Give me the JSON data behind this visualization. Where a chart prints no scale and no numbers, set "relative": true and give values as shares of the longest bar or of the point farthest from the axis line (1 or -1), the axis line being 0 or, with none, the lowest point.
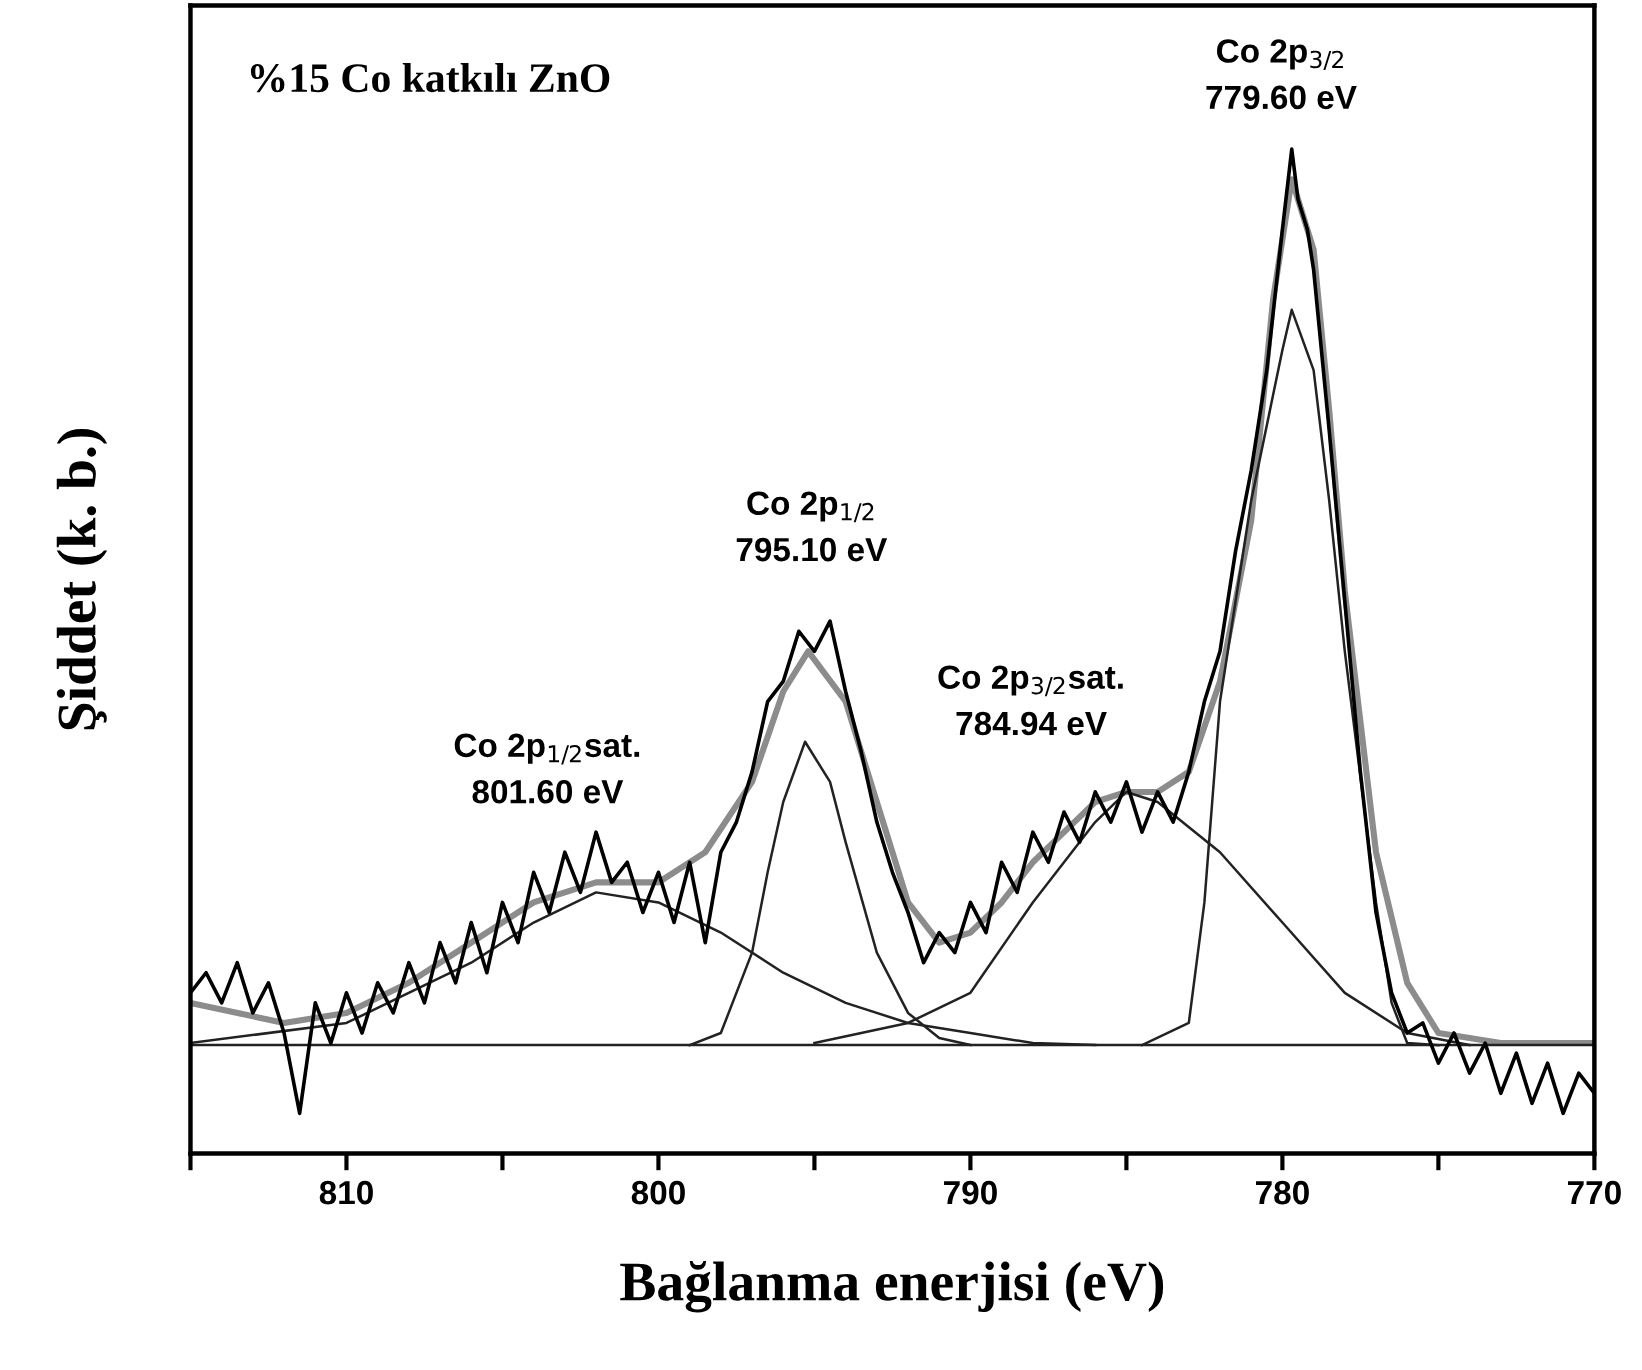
{
  "chart_data": {
    "type": "line",
    "relative": true,
    "xlabel": "Bağlanma enerjisi (eV)",
    "ylabel": "Şiddet (k. b.)",
    "xlim": [
      815,
      770
    ],
    "xticks": [
      {
        "value": 815,
        "label": null
      },
      810,
      {
        "value": 805,
        "label": null
      },
      800,
      {
        "value": 795,
        "label": null
      },
      790,
      {
        "value": 785,
        "label": null
      },
      780,
      {
        "value": 775,
        "label": null
      },
      770
    ],
    "annotations": [
      "%15 Co katkılı ZnO",
      {
        "text": "Co 2p$_{1/2}$sat.\n801.60 eV",
        "x": 801.6,
        "y": 0.27
      },
      {
        "text": "Co 2p$_{1/2}$\n795.10 eV",
        "x": 795.1,
        "y": 0.5
      },
      {
        "text": "Co 2p$_{3/2}$sat.\n784.94 eV",
        "x": 784.94,
        "y": 0.36
      },
      {
        "text": "Co 2p$_{3/2}$\n779.60 eV",
        "x": 779.6,
        "y": 1.0
      }
    ],
    "series": [
      {
        "color": "#000000",
        "x": [
          815,
          814.5,
          814,
          813.5,
          813,
          812.5,
          812,
          811.5,
          811,
          810.5,
          810,
          809.5,
          809,
          808.5,
          808,
          807.5,
          807,
          806.5,
          806,
          805.5,
          805,
          804.5,
          804,
          803.5,
          803,
          802.5,
          802,
          801.5,
          801,
          800.5,
          800,
          799.5,
          799,
          798.5,
          798,
          797.5,
          797,
          796.5,
          796,
          795.5,
          795,
          794.5,
          794,
          793.5,
          793,
          792.5,
          792,
          791.5,
          791,
          790.5,
          790,
          789.5,
          789,
          788.5,
          788,
          787.5,
          787,
          786.5,
          786,
          785.5,
          785,
          784.5,
          784,
          783.5,
          783,
          782.5,
          782,
          781.5,
          781,
          780.5,
          780,
          779.7,
          779.5,
          779.2,
          779,
          778.5,
          778,
          777.5,
          777,
          776.5,
          776,
          775.5,
          775,
          774.5,
          774,
          773.5,
          773,
          772.5,
          772,
          771.5,
          771,
          770.5,
          770
        ],
        "values": [
          0.16,
          0.18,
          0.15,
          0.19,
          0.14,
          0.17,
          0.12,
          0.04,
          0.15,
          0.11,
          0.16,
          0.12,
          0.17,
          0.14,
          0.19,
          0.15,
          0.21,
          0.17,
          0.23,
          0.18,
          0.25,
          0.21,
          0.28,
          0.24,
          0.3,
          0.26,
          0.32,
          0.27,
          0.29,
          0.24,
          0.28,
          0.23,
          0.29,
          0.21,
          0.3,
          0.33,
          0.38,
          0.45,
          0.47,
          0.52,
          0.5,
          0.53,
          0.46,
          0.4,
          0.33,
          0.28,
          0.24,
          0.19,
          0.22,
          0.2,
          0.25,
          0.22,
          0.29,
          0.26,
          0.32,
          0.29,
          0.34,
          0.31,
          0.36,
          0.33,
          0.37,
          0.32,
          0.36,
          0.33,
          0.38,
          0.45,
          0.5,
          0.6,
          0.68,
          0.78,
          0.92,
          1.0,
          0.95,
          0.92,
          0.88,
          0.72,
          0.55,
          0.38,
          0.24,
          0.16,
          0.12,
          0.13,
          0.09,
          0.12,
          0.08,
          0.11,
          0.06,
          0.1,
          0.05,
          0.09,
          0.04,
          0.08,
          0.06
        ]
      },
      {
        "color": "#8c8c8c",
        "x": [
          815,
          812,
          810,
          808,
          806,
          804,
          802,
          800,
          798.5,
          797,
          796,
          795.2,
          794,
          793,
          792,
          791,
          790,
          789,
          788,
          787,
          786,
          785,
          784,
          783,
          782,
          781,
          780.3,
          779.7,
          779,
          778.5,
          778,
          777,
          776,
          775,
          773,
          770
        ],
        "values": [
          0.15,
          0.13,
          0.14,
          0.17,
          0.21,
          0.25,
          0.27,
          0.27,
          0.3,
          0.37,
          0.46,
          0.5,
          0.45,
          0.35,
          0.25,
          0.21,
          0.22,
          0.25,
          0.29,
          0.32,
          0.35,
          0.36,
          0.36,
          0.38,
          0.47,
          0.63,
          0.85,
          0.97,
          0.9,
          0.74,
          0.56,
          0.3,
          0.17,
          0.12,
          0.11,
          0.11
        ]
      },
      {
        "color": "#222222",
        "x": [
          815,
          810,
          806,
          804,
          802,
          800,
          798,
          796,
          794,
          792,
          790,
          788,
          786
        ],
        "values": [
          0.11,
          0.13,
          0.19,
          0.23,
          0.26,
          0.25,
          0.22,
          0.18,
          0.15,
          0.13,
          0.12,
          0.11,
          0.108
        ]
      },
      {
        "color": "#222222",
        "x": [
          799,
          798,
          797,
          796.5,
          796,
          795.3,
          794.5,
          794,
          793,
          792,
          791,
          790
        ],
        "values": [
          0.108,
          0.12,
          0.2,
          0.28,
          0.35,
          0.41,
          0.37,
          0.31,
          0.2,
          0.14,
          0.115,
          0.108
        ]
      },
      {
        "color": "#222222",
        "x": [
          795,
          792,
          790,
          788,
          786,
          785,
          784,
          782,
          780,
          778,
          776,
          774
        ],
        "values": [
          0.11,
          0.13,
          0.16,
          0.25,
          0.33,
          0.36,
          0.35,
          0.3,
          0.23,
          0.16,
          0.12,
          0.108
        ]
      },
      {
        "color": "#222222",
        "x": [
          784.5,
          783,
          782.5,
          782,
          781,
          780,
          779.7,
          779,
          778.5,
          778,
          777,
          776.5,
          776,
          775
        ],
        "values": [
          0.108,
          0.13,
          0.25,
          0.45,
          0.65,
          0.8,
          0.84,
          0.78,
          0.65,
          0.5,
          0.25,
          0.15,
          0.11,
          0.108
        ]
      },
      {
        "color": "#222222",
        "x": [
          815,
          770
        ],
        "values": [
          0.108,
          0.108
        ]
      }
    ]
  }
}
